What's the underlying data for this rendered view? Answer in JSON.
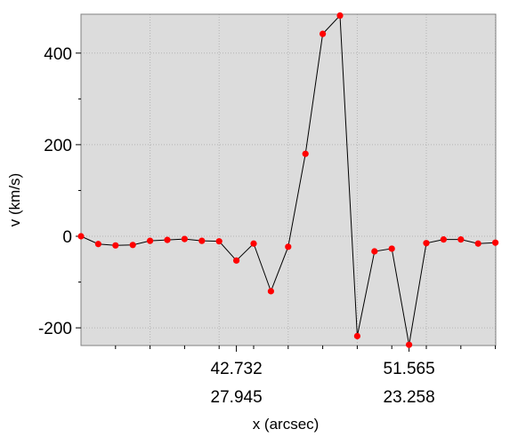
{
  "chart_data": {
    "type": "line",
    "xlabel": "x (arcsec)",
    "ylabel": "v (km/s)",
    "y_ticks": [
      400,
      200,
      0,
      -200
    ],
    "y_tick_labels": [
      "400",
      "200",
      "0",
      "-200"
    ],
    "ylim": [
      -237,
      482
    ],
    "x_ticks": [
      {
        "index": 9,
        "label_top": "42.732",
        "label_bottom": "27.945"
      },
      {
        "index": 19,
        "label_top": "51.565",
        "label_bottom": "23.258"
      }
    ],
    "grid": true,
    "series": [
      {
        "color": "#ff0000",
        "line_color": "#000000",
        "values": [
          0,
          -17,
          -20,
          -19,
          -10,
          -8,
          -6,
          -10,
          -11,
          -53,
          -16,
          -120,
          -23,
          180,
          442,
          482,
          -218,
          -33,
          -27,
          -237,
          -15,
          -7,
          -7,
          -16,
          -14
        ]
      }
    ]
  }
}
